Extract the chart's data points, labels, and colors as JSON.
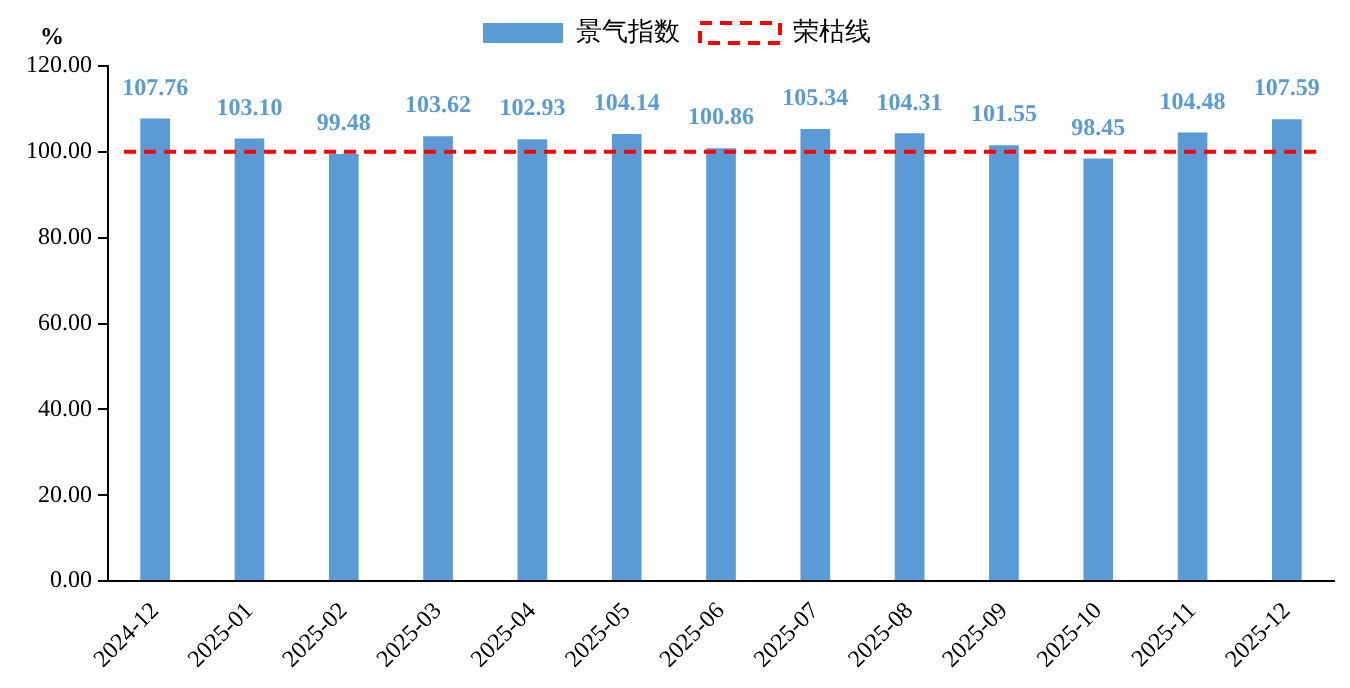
{
  "chart_data": {
    "type": "bar",
    "ylabel": "%",
    "categories": [
      "2024-12",
      "2025-01",
      "2025-02",
      "2025-03",
      "2025-04",
      "2025-05",
      "2025-06",
      "2025-07",
      "2025-08",
      "2025-09",
      "2025-10",
      "2025-11",
      "2025-12"
    ],
    "series": [
      {
        "name": "景气指数",
        "color": "#5b9bd5",
        "values": [
          107.76,
          103.1,
          99.48,
          103.62,
          102.93,
          104.14,
          100.86,
          105.34,
          104.31,
          101.55,
          98.45,
          104.48,
          107.59
        ],
        "value_labels": [
          "107.76",
          "103.10",
          "99.48",
          "103.62",
          "102.93",
          "104.14",
          "100.86",
          "105.34",
          "104.31",
          "101.55",
          "98.45",
          "104.48",
          "107.59"
        ]
      }
    ],
    "ylim": [
      0,
      120
    ],
    "yticks": [
      {
        "value": 0,
        "label": "0.00"
      },
      {
        "value": 20,
        "label": "20.00"
      },
      {
        "value": 40,
        "label": "40.00"
      },
      {
        "value": 60,
        "label": "60.00"
      },
      {
        "value": 80,
        "label": "80.00"
      },
      {
        "value": 100,
        "label": "100.00"
      },
      {
        "value": 120,
        "label": "120.00"
      }
    ],
    "ref_lines": [
      {
        "axis": "y",
        "value": 100,
        "label": "荣枯线",
        "color": "#ff0000",
        "line_style": "dashed"
      }
    ],
    "grid": false,
    "legend": "top"
  }
}
